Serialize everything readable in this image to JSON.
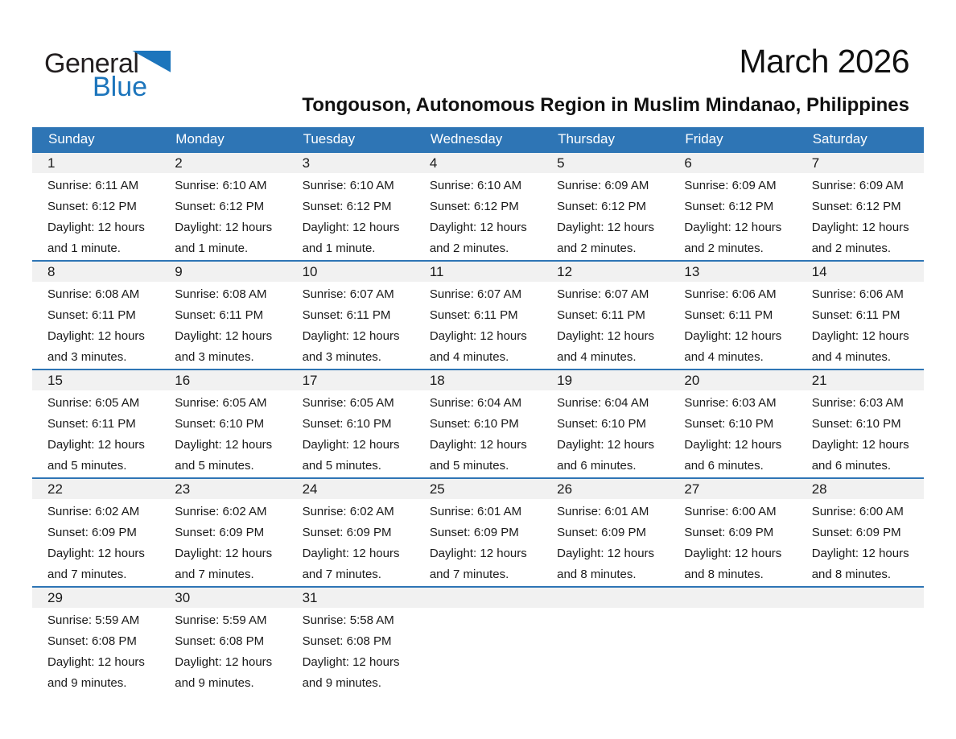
{
  "logo": {
    "general": "General",
    "blue": "Blue"
  },
  "header": {
    "title": "March 2026",
    "subtitle": "Tongouson, Autonomous Region in Muslim Mindanao, Philippines"
  },
  "colors": {
    "header_bar": "#2E75B5",
    "week_divider": "#2E75B5",
    "day_band": "#F1F1F1",
    "logo_blue": "#1C75BC",
    "header_text": "#FFFFFF",
    "text": "#1A1A1A"
  },
  "calendar": {
    "weekdays": [
      "Sunday",
      "Monday",
      "Tuesday",
      "Wednesday",
      "Thursday",
      "Friday",
      "Saturday"
    ],
    "weeks": [
      [
        {
          "day": "1",
          "sunrise": "Sunrise: 6:11 AM",
          "sunset": "Sunset: 6:12 PM",
          "daylight1": "Daylight: 12 hours",
          "daylight2": "and 1 minute."
        },
        {
          "day": "2",
          "sunrise": "Sunrise: 6:10 AM",
          "sunset": "Sunset: 6:12 PM",
          "daylight1": "Daylight: 12 hours",
          "daylight2": "and 1 minute."
        },
        {
          "day": "3",
          "sunrise": "Sunrise: 6:10 AM",
          "sunset": "Sunset: 6:12 PM",
          "daylight1": "Daylight: 12 hours",
          "daylight2": "and 1 minute."
        },
        {
          "day": "4",
          "sunrise": "Sunrise: 6:10 AM",
          "sunset": "Sunset: 6:12 PM",
          "daylight1": "Daylight: 12 hours",
          "daylight2": "and 2 minutes."
        },
        {
          "day": "5",
          "sunrise": "Sunrise: 6:09 AM",
          "sunset": "Sunset: 6:12 PM",
          "daylight1": "Daylight: 12 hours",
          "daylight2": "and 2 minutes."
        },
        {
          "day": "6",
          "sunrise": "Sunrise: 6:09 AM",
          "sunset": "Sunset: 6:12 PM",
          "daylight1": "Daylight: 12 hours",
          "daylight2": "and 2 minutes."
        },
        {
          "day": "7",
          "sunrise": "Sunrise: 6:09 AM",
          "sunset": "Sunset: 6:12 PM",
          "daylight1": "Daylight: 12 hours",
          "daylight2": "and 2 minutes."
        }
      ],
      [
        {
          "day": "8",
          "sunrise": "Sunrise: 6:08 AM",
          "sunset": "Sunset: 6:11 PM",
          "daylight1": "Daylight: 12 hours",
          "daylight2": "and 3 minutes."
        },
        {
          "day": "9",
          "sunrise": "Sunrise: 6:08 AM",
          "sunset": "Sunset: 6:11 PM",
          "daylight1": "Daylight: 12 hours",
          "daylight2": "and 3 minutes."
        },
        {
          "day": "10",
          "sunrise": "Sunrise: 6:07 AM",
          "sunset": "Sunset: 6:11 PM",
          "daylight1": "Daylight: 12 hours",
          "daylight2": "and 3 minutes."
        },
        {
          "day": "11",
          "sunrise": "Sunrise: 6:07 AM",
          "sunset": "Sunset: 6:11 PM",
          "daylight1": "Daylight: 12 hours",
          "daylight2": "and 4 minutes."
        },
        {
          "day": "12",
          "sunrise": "Sunrise: 6:07 AM",
          "sunset": "Sunset: 6:11 PM",
          "daylight1": "Daylight: 12 hours",
          "daylight2": "and 4 minutes."
        },
        {
          "day": "13",
          "sunrise": "Sunrise: 6:06 AM",
          "sunset": "Sunset: 6:11 PM",
          "daylight1": "Daylight: 12 hours",
          "daylight2": "and 4 minutes."
        },
        {
          "day": "14",
          "sunrise": "Sunrise: 6:06 AM",
          "sunset": "Sunset: 6:11 PM",
          "daylight1": "Daylight: 12 hours",
          "daylight2": "and 4 minutes."
        }
      ],
      [
        {
          "day": "15",
          "sunrise": "Sunrise: 6:05 AM",
          "sunset": "Sunset: 6:11 PM",
          "daylight1": "Daylight: 12 hours",
          "daylight2": "and 5 minutes."
        },
        {
          "day": "16",
          "sunrise": "Sunrise: 6:05 AM",
          "sunset": "Sunset: 6:10 PM",
          "daylight1": "Daylight: 12 hours",
          "daylight2": "and 5 minutes."
        },
        {
          "day": "17",
          "sunrise": "Sunrise: 6:05 AM",
          "sunset": "Sunset: 6:10 PM",
          "daylight1": "Daylight: 12 hours",
          "daylight2": "and 5 minutes."
        },
        {
          "day": "18",
          "sunrise": "Sunrise: 6:04 AM",
          "sunset": "Sunset: 6:10 PM",
          "daylight1": "Daylight: 12 hours",
          "daylight2": "and 5 minutes."
        },
        {
          "day": "19",
          "sunrise": "Sunrise: 6:04 AM",
          "sunset": "Sunset: 6:10 PM",
          "daylight1": "Daylight: 12 hours",
          "daylight2": "and 6 minutes."
        },
        {
          "day": "20",
          "sunrise": "Sunrise: 6:03 AM",
          "sunset": "Sunset: 6:10 PM",
          "daylight1": "Daylight: 12 hours",
          "daylight2": "and 6 minutes."
        },
        {
          "day": "21",
          "sunrise": "Sunrise: 6:03 AM",
          "sunset": "Sunset: 6:10 PM",
          "daylight1": "Daylight: 12 hours",
          "daylight2": "and 6 minutes."
        }
      ],
      [
        {
          "day": "22",
          "sunrise": "Sunrise: 6:02 AM",
          "sunset": "Sunset: 6:09 PM",
          "daylight1": "Daylight: 12 hours",
          "daylight2": "and 7 minutes."
        },
        {
          "day": "23",
          "sunrise": "Sunrise: 6:02 AM",
          "sunset": "Sunset: 6:09 PM",
          "daylight1": "Daylight: 12 hours",
          "daylight2": "and 7 minutes."
        },
        {
          "day": "24",
          "sunrise": "Sunrise: 6:02 AM",
          "sunset": "Sunset: 6:09 PM",
          "daylight1": "Daylight: 12 hours",
          "daylight2": "and 7 minutes."
        },
        {
          "day": "25",
          "sunrise": "Sunrise: 6:01 AM",
          "sunset": "Sunset: 6:09 PM",
          "daylight1": "Daylight: 12 hours",
          "daylight2": "and 7 minutes."
        },
        {
          "day": "26",
          "sunrise": "Sunrise: 6:01 AM",
          "sunset": "Sunset: 6:09 PM",
          "daylight1": "Daylight: 12 hours",
          "daylight2": "and 8 minutes."
        },
        {
          "day": "27",
          "sunrise": "Sunrise: 6:00 AM",
          "sunset": "Sunset: 6:09 PM",
          "daylight1": "Daylight: 12 hours",
          "daylight2": "and 8 minutes."
        },
        {
          "day": "28",
          "sunrise": "Sunrise: 6:00 AM",
          "sunset": "Sunset: 6:09 PM",
          "daylight1": "Daylight: 12 hours",
          "daylight2": "and 8 minutes."
        }
      ],
      [
        {
          "day": "29",
          "sunrise": "Sunrise: 5:59 AM",
          "sunset": "Sunset: 6:08 PM",
          "daylight1": "Daylight: 12 hours",
          "daylight2": "and 9 minutes."
        },
        {
          "day": "30",
          "sunrise": "Sunrise: 5:59 AM",
          "sunset": "Sunset: 6:08 PM",
          "daylight1": "Daylight: 12 hours",
          "daylight2": "and 9 minutes."
        },
        {
          "day": "31",
          "sunrise": "Sunrise: 5:58 AM",
          "sunset": "Sunset: 6:08 PM",
          "daylight1": "Daylight: 12 hours",
          "daylight2": "and 9 minutes."
        },
        null,
        null,
        null,
        null
      ]
    ]
  }
}
